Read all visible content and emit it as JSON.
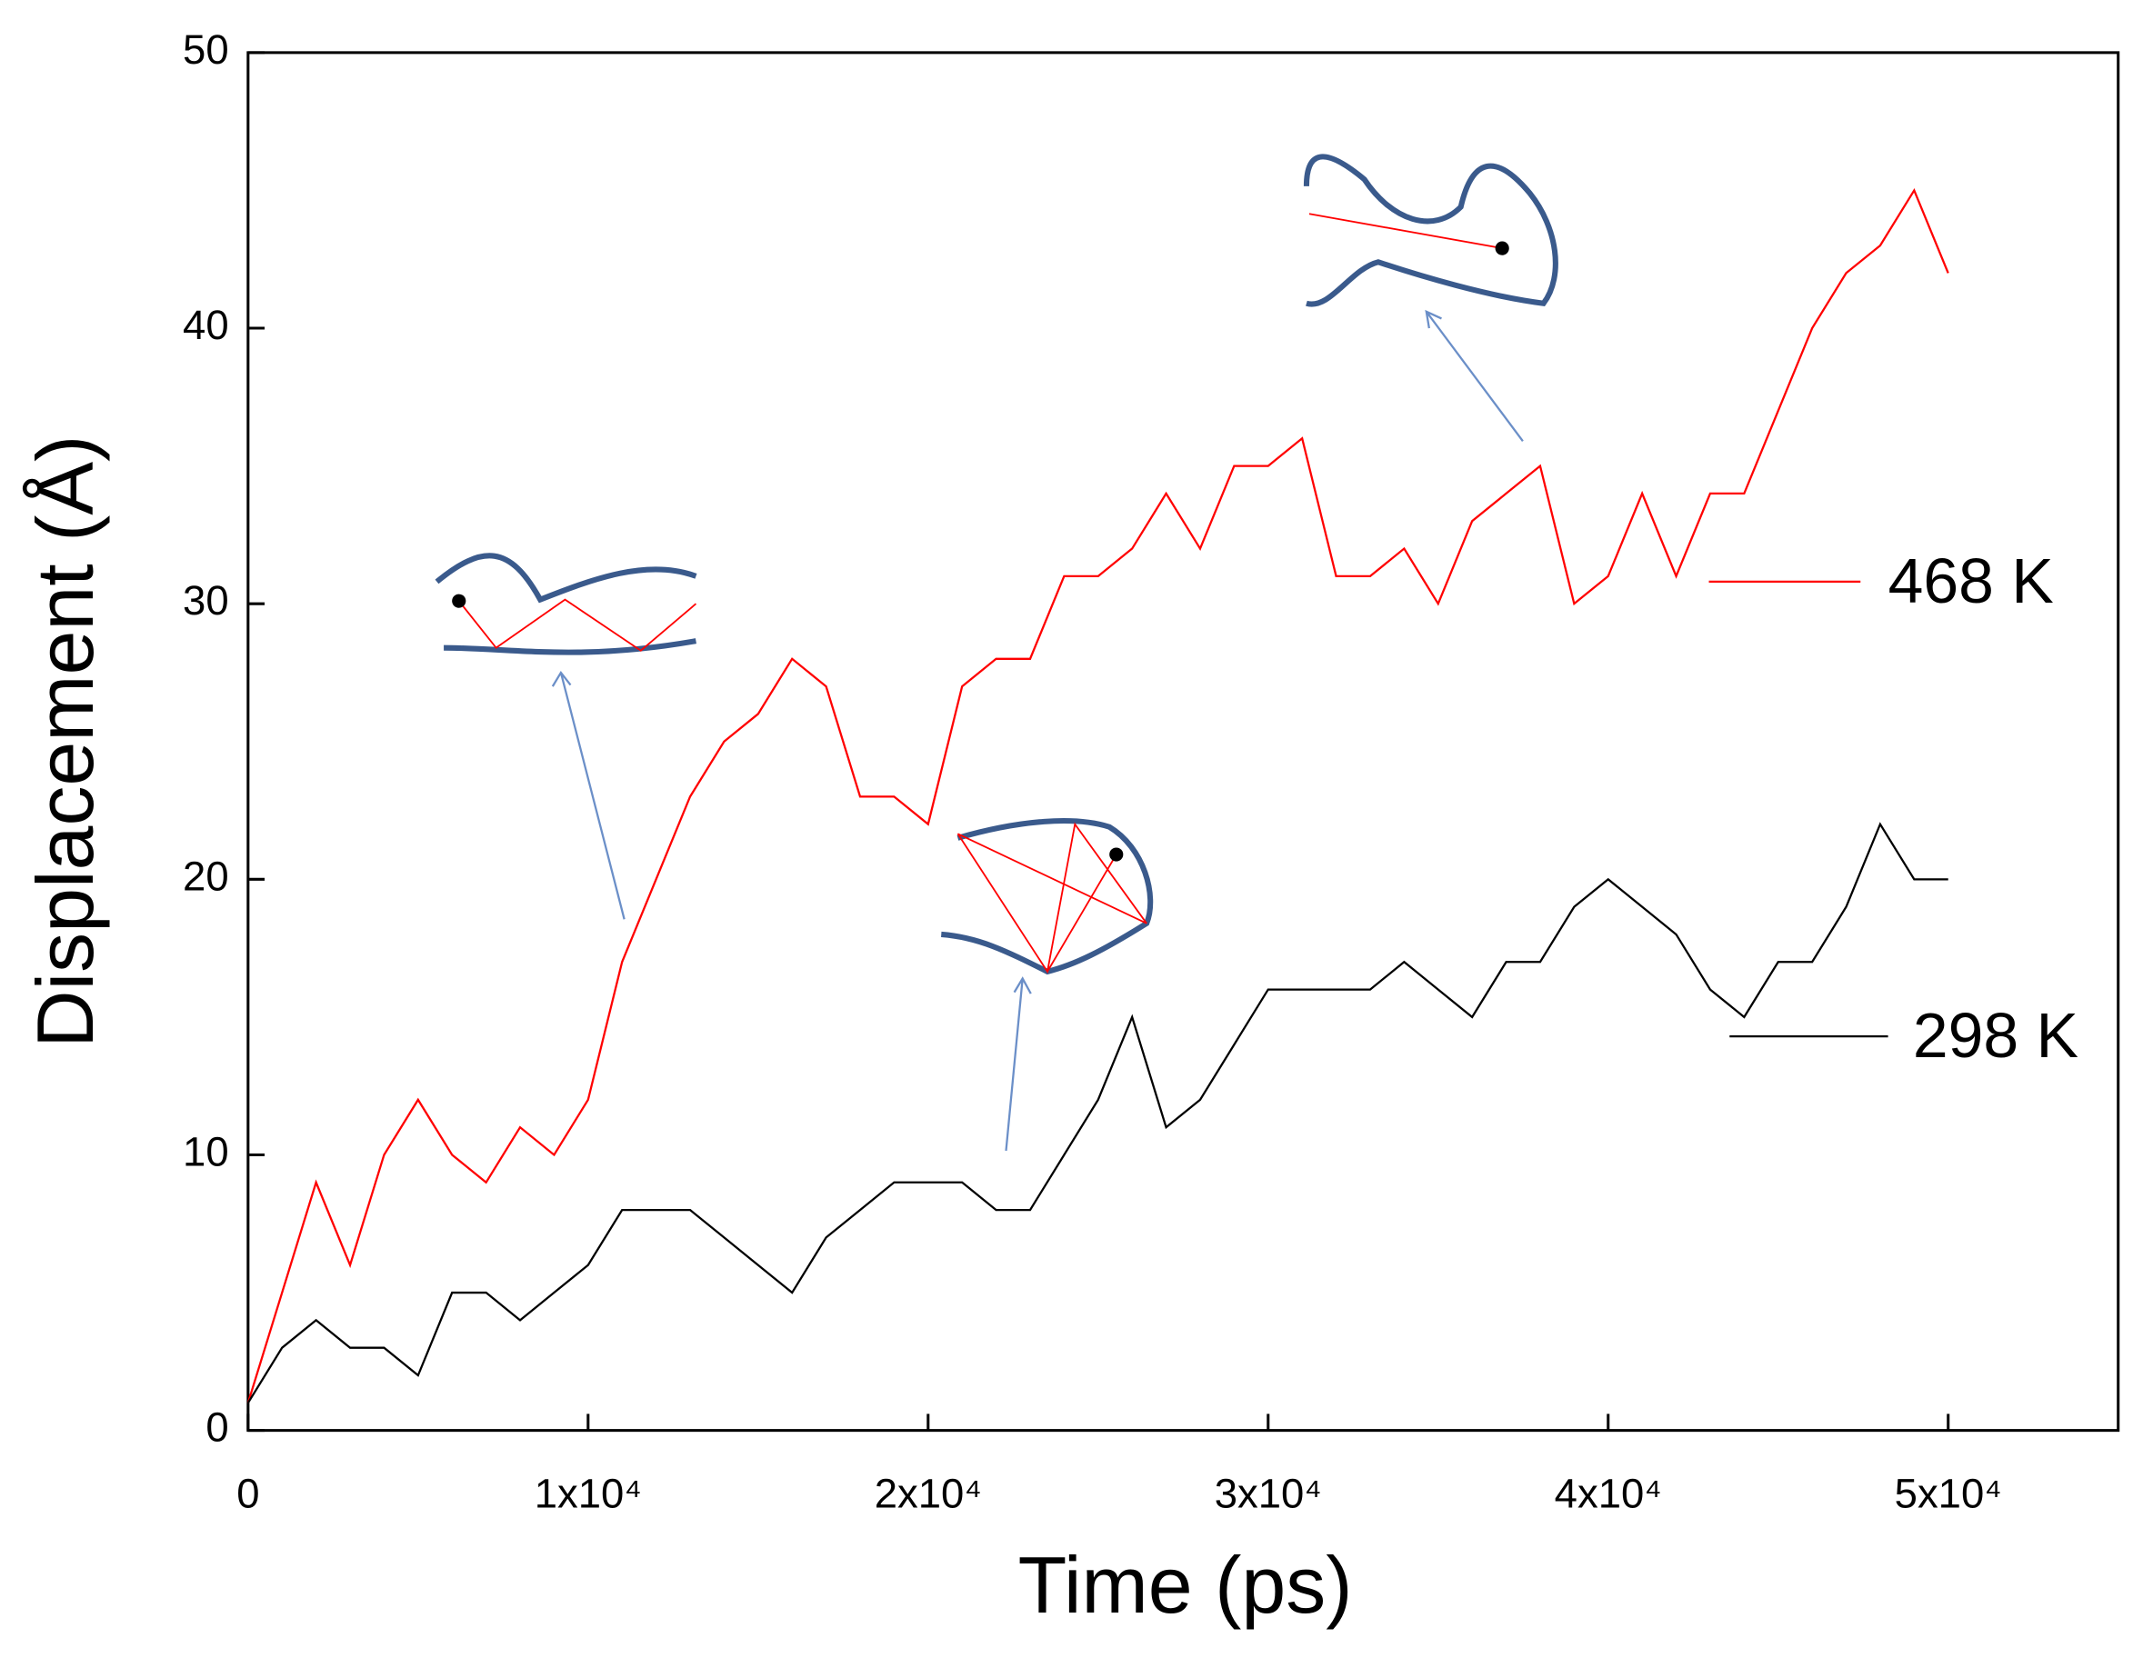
{
  "chart_data": {
    "type": "line",
    "x_label": "Time (ps)",
    "y_label": "Displacement (Å)",
    "x": [
      0,
      1000,
      2000,
      3000,
      4000,
      5000,
      6000,
      7000,
      8000,
      9000,
      10000,
      11000,
      12000,
      13000,
      14000,
      15000,
      16000,
      17000,
      18000,
      19000,
      20000,
      21000,
      22000,
      23000,
      24000,
      25000,
      26000,
      27000,
      28000,
      29000,
      30000,
      31000,
      32000,
      33000,
      34000,
      35000,
      36000,
      37000,
      38000,
      39000,
      40000,
      41000,
      42000,
      43000,
      44000,
      45000,
      46000,
      47000,
      48000,
      49000,
      50000
    ],
    "series": [
      {
        "name": "468 K",
        "color": "#ff0000",
        "values": [
          1,
          5,
          9,
          6,
          10,
          12,
          10,
          9,
          11,
          10,
          12,
          17,
          20,
          23,
          25,
          26,
          28,
          27,
          23,
          23,
          22,
          27,
          28,
          28,
          31,
          31,
          32,
          34,
          32,
          35,
          35,
          36,
          31,
          31,
          32,
          30,
          33,
          34,
          35,
          30,
          31,
          34,
          31,
          34,
          34,
          37,
          40,
          42,
          43,
          45,
          42
        ]
      },
      {
        "name": "298 K",
        "color": "#000000",
        "values": [
          1,
          3,
          4,
          3,
          3,
          2,
          5,
          5,
          4,
          5,
          6,
          8,
          8,
          8,
          7,
          6,
          5,
          7,
          8,
          9,
          9,
          9,
          8,
          8,
          10,
          12,
          15,
          11,
          12,
          14,
          16,
          16,
          16,
          16,
          17,
          16,
          15,
          17,
          17,
          19,
          20,
          19,
          18,
          16,
          15,
          17,
          17,
          19,
          22,
          20,
          20
        ]
      }
    ],
    "xlim": [
      0,
      55000
    ],
    "xticks": [
      0,
      {
        "value": 10000,
        "label": "1x10⁴"
      },
      {
        "value": 20000,
        "label": "2x10⁴"
      },
      {
        "value": 30000,
        "label": "3x10⁴"
      },
      {
        "value": 40000,
        "label": "4x10⁴"
      },
      {
        "value": 50000,
        "label": "5x10⁴"
      }
    ],
    "ylim": [
      0,
      50
    ],
    "yticks": [
      0,
      10,
      20,
      30,
      40,
      50
    ]
  }
}
